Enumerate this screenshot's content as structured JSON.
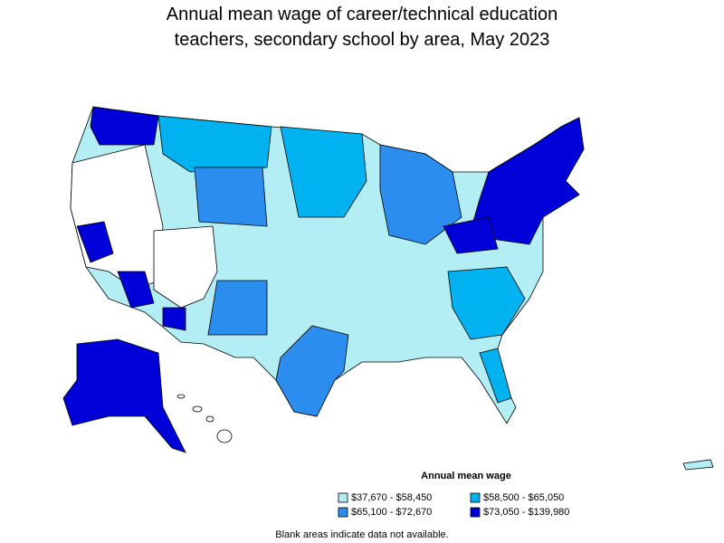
{
  "title": [
    "Annual mean wage of career/technical education",
    "teachers, secondary school by area, May 2023"
  ],
  "legend": {
    "title": "Annual mean wage",
    "items": [
      {
        "label": "$37,670 - $58,450",
        "color": "#b3eef5"
      },
      {
        "label": "$58,500 - $65,050",
        "color": "#00b2f0"
      },
      {
        "label": "$65,100 - $72,670",
        "color": "#2b8ded"
      },
      {
        "label": "$73,050 - $139,980",
        "color": "#0000d8"
      }
    ]
  },
  "note": "Blank areas indicate data not available."
}
